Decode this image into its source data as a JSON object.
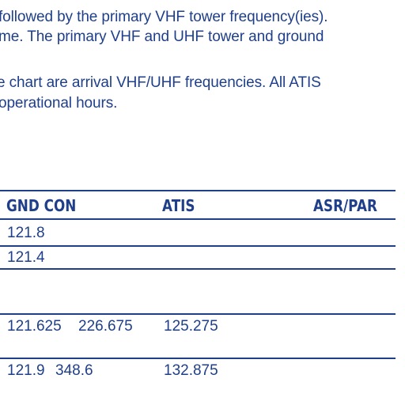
{
  "paragraph_lines": [
    "followed by the primary VHF tower frequency(ies).",
    "me. The primary VHF and UHF tower and ground",
    "e chart are arrival VHF/UHF frequencies. All ATIS",
    "operational hours."
  ],
  "table": {
    "headers": {
      "gnd_con": "GND  CON",
      "atis": "ATIS",
      "asr_par": "ASR/PAR"
    },
    "rows": [
      {
        "gnd": "121.8",
        "con": "",
        "atis": ""
      },
      {
        "gnd": "121.4",
        "con": "",
        "atis": ""
      },
      {
        "gnd": "",
        "con": "",
        "atis": ""
      },
      {
        "gnd": "121.625",
        "con": "226.675",
        "atis": "125.275"
      },
      {
        "gnd": "121.9",
        "con": "348.6",
        "atis": "132.875"
      }
    ]
  },
  "colors": {
    "text": "#1f3f8a",
    "background": "#ffffff"
  }
}
